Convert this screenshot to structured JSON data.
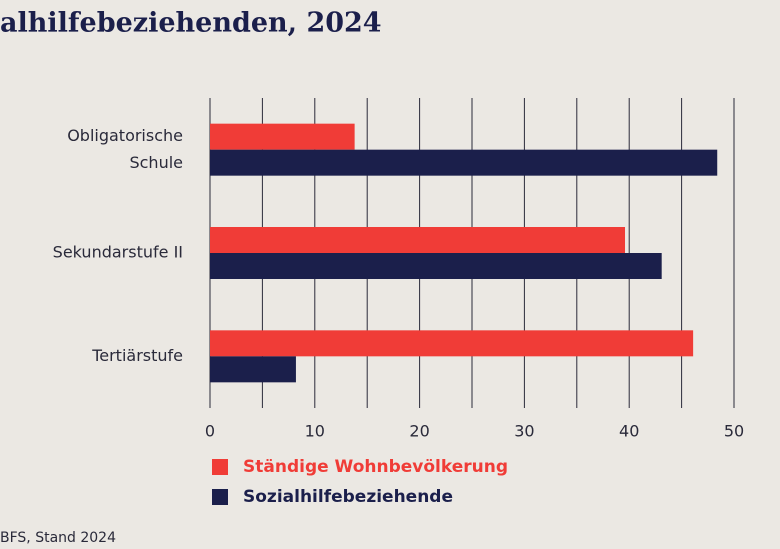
{
  "chart_data": {
    "type": "hbar",
    "title": "alhilfebeziehenden, 2024",
    "source": "BFS, Stand 2024",
    "categories": [
      "Obligatorische Schule",
      "Sekundarstufe II",
      "Tertiärstufe"
    ],
    "series": [
      {
        "name": "Ständige Wohnbevölkerung",
        "color": "#f03c37",
        "values": [
          13.8,
          39.6,
          46.1
        ]
      },
      {
        "name": "Sozialhilfebeziehende",
        "color": "#1b1f4b",
        "values": [
          48.4,
          43.1,
          8.2
        ]
      }
    ],
    "xlim": [
      0,
      50
    ],
    "xticks": [
      0,
      10,
      20,
      30,
      40,
      50
    ],
    "xminor_ticks": [
      5,
      15,
      25,
      35,
      45
    ],
    "grid": true
  }
}
